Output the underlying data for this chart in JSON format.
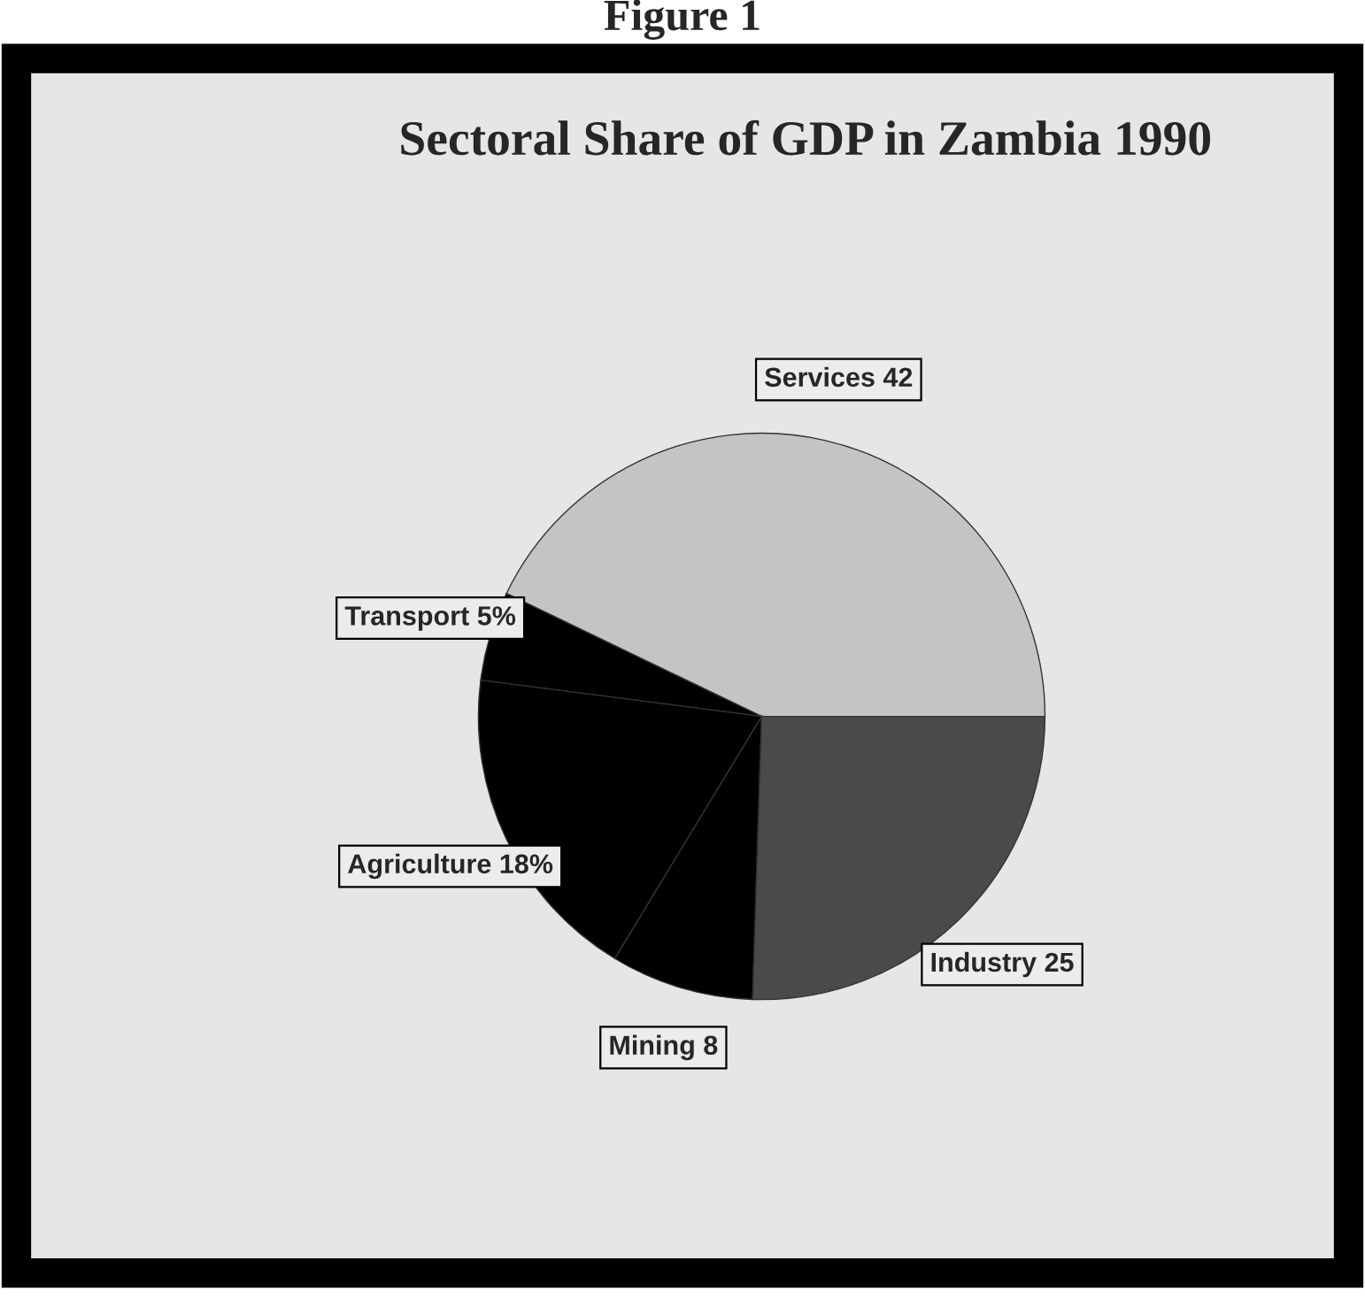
{
  "chart_data": {
    "type": "pie",
    "title": "Sectoral Share of GDP in Zambia 1990",
    "annotations": [
      "Figure 1"
    ],
    "categories": [
      "Services 42",
      "Transport 5%",
      "Agriculture 18%",
      "Mining 8",
      "Industry 25"
    ],
    "values": [
      42,
      5,
      18,
      8,
      25
    ],
    "colors": [
      "#c4c4c4",
      "#000000",
      "#000000",
      "#000000",
      "#4a4a4a"
    ]
  }
}
